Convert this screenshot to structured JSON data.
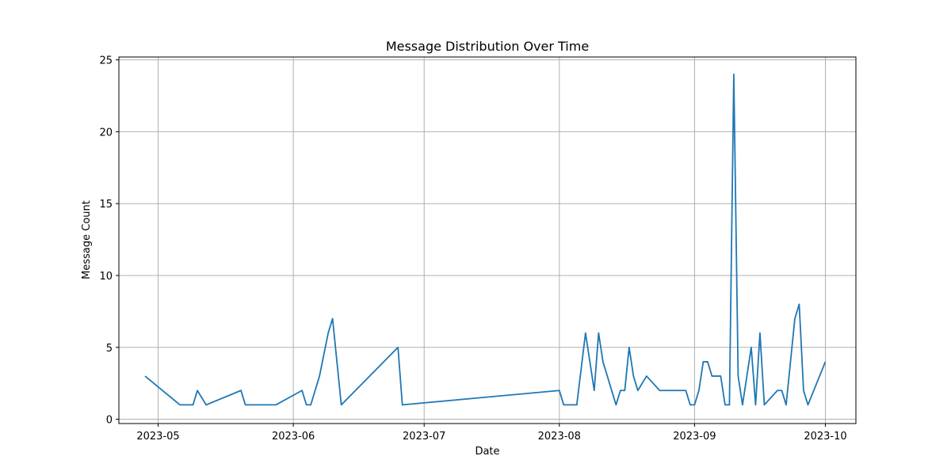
{
  "chart_data": {
    "type": "line",
    "title": "Message Distribution Over Time",
    "xlabel": "Date",
    "ylabel": "Message Count",
    "x_type": "date",
    "xlim": [
      "2023-04-22",
      "2023-10-08"
    ],
    "ylim": [
      -0.3,
      25.2
    ],
    "grid": true,
    "color": "#1f77b4",
    "x_ticks": [
      {
        "value": "2023-05-01",
        "label": "2023-05"
      },
      {
        "value": "2023-06-01",
        "label": "2023-06"
      },
      {
        "value": "2023-07-01",
        "label": "2023-07"
      },
      {
        "value": "2023-08-01",
        "label": "2023-08"
      },
      {
        "value": "2023-09-01",
        "label": "2023-09"
      },
      {
        "value": "2023-10-01",
        "label": "2023-10"
      }
    ],
    "y_ticks": [
      0,
      5,
      10,
      15,
      20,
      25
    ],
    "series": [
      {
        "x": [
          "2023-04-28",
          "2023-05-06",
          "2023-05-09",
          "2023-05-10",
          "2023-05-12",
          "2023-05-20",
          "2023-05-21",
          "2023-05-28",
          "2023-06-03",
          "2023-06-04",
          "2023-06-05",
          "2023-06-07",
          "2023-06-09",
          "2023-06-10",
          "2023-06-12",
          "2023-06-25",
          "2023-06-26",
          "2023-08-01",
          "2023-08-02",
          "2023-08-05",
          "2023-08-07",
          "2023-08-09",
          "2023-08-10",
          "2023-08-11",
          "2023-08-14",
          "2023-08-15",
          "2023-08-16",
          "2023-08-17",
          "2023-08-18",
          "2023-08-19",
          "2023-08-21",
          "2023-08-24",
          "2023-08-30",
          "2023-08-31",
          "2023-09-01",
          "2023-09-02",
          "2023-09-03",
          "2023-09-04",
          "2023-09-05",
          "2023-09-07",
          "2023-09-08",
          "2023-09-09",
          "2023-09-10",
          "2023-09-11",
          "2023-09-12",
          "2023-09-14",
          "2023-09-15",
          "2023-09-16",
          "2023-09-17",
          "2023-09-20",
          "2023-09-21",
          "2023-09-22",
          "2023-09-24",
          "2023-09-25",
          "2023-09-26",
          "2023-09-27",
          "2023-10-01"
        ],
        "values": [
          3,
          1,
          1,
          2,
          1,
          2,
          1,
          1,
          2,
          1,
          1,
          3,
          6,
          7,
          1,
          5,
          1,
          2,
          1,
          1,
          6,
          2,
          6,
          4,
          1,
          2,
          2,
          5,
          3,
          2,
          3,
          2,
          2,
          1,
          1,
          2,
          4,
          4,
          3,
          3,
          1,
          1,
          24,
          3,
          1,
          5,
          1,
          6,
          1,
          2,
          2,
          1,
          7,
          8,
          2,
          1,
          4
        ]
      }
    ]
  }
}
